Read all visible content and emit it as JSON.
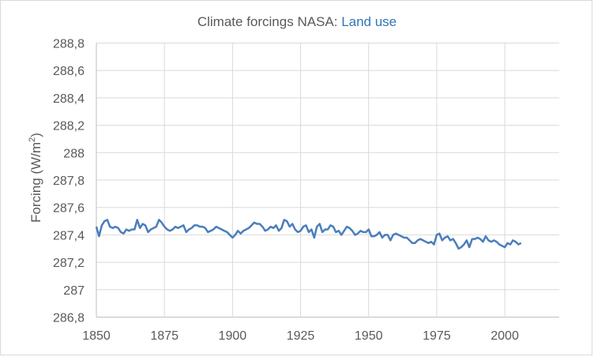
{
  "chart_data": {
    "type": "line",
    "title_prefix": "Climate forcings NASA: ",
    "title_highlight": "Land use",
    "xlabel": "",
    "ylabel": "Forcing (W/m",
    "ylabel_sup": "2",
    "ylabel_close": ")",
    "xlim": [
      1850,
      2020
    ],
    "ylim": [
      286.8,
      288.8
    ],
    "x_ticks": [
      1850,
      1875,
      1900,
      1925,
      1950,
      1975,
      2000
    ],
    "x_tick_labels": [
      "1850",
      "1875",
      "1900",
      "1925",
      "1950",
      "1975",
      "2000"
    ],
    "y_ticks": [
      286.8,
      287.0,
      287.2,
      287.4,
      287.6,
      287.8,
      288.0,
      288.2,
      288.4,
      288.6,
      288.8
    ],
    "y_tick_labels": [
      "286,8",
      "287",
      "287,2",
      "287,4",
      "287,6",
      "287,8",
      "288",
      "288,2",
      "288,4",
      "288,6",
      "288,8"
    ],
    "grid": true,
    "legend": "none",
    "series": [
      {
        "name": "Land use",
        "color": "#4a7ebb",
        "x_start": 1850,
        "x_step": 1,
        "values": [
          287.46,
          287.39,
          287.47,
          287.5,
          287.51,
          287.46,
          287.45,
          287.46,
          287.45,
          287.42,
          287.41,
          287.44,
          287.43,
          287.44,
          287.44,
          287.51,
          287.45,
          287.48,
          287.47,
          287.42,
          287.44,
          287.45,
          287.46,
          287.51,
          287.49,
          287.46,
          287.44,
          287.43,
          287.44,
          287.46,
          287.45,
          287.46,
          287.47,
          287.42,
          287.44,
          287.45,
          287.47,
          287.47,
          287.46,
          287.46,
          287.45,
          287.42,
          287.43,
          287.44,
          287.46,
          287.45,
          287.44,
          287.43,
          287.42,
          287.4,
          287.38,
          287.4,
          287.43,
          287.41,
          287.43,
          287.44,
          287.45,
          287.47,
          287.49,
          287.48,
          287.48,
          287.46,
          287.43,
          287.44,
          287.46,
          287.45,
          287.47,
          287.43,
          287.45,
          287.51,
          287.5,
          287.46,
          287.48,
          287.44,
          287.42,
          287.43,
          287.46,
          287.47,
          287.42,
          287.44,
          287.38,
          287.46,
          287.48,
          287.42,
          287.44,
          287.44,
          287.47,
          287.46,
          287.42,
          287.43,
          287.4,
          287.43,
          287.46,
          287.45,
          287.43,
          287.4,
          287.41,
          287.43,
          287.42,
          287.42,
          287.44,
          287.39,
          287.39,
          287.4,
          287.42,
          287.38,
          287.4,
          287.4,
          287.36,
          287.4,
          287.41,
          287.4,
          287.39,
          287.38,
          287.38,
          287.36,
          287.34,
          287.34,
          287.36,
          287.37,
          287.36,
          287.35,
          287.34,
          287.35,
          287.33,
          287.4,
          287.41,
          287.36,
          287.38,
          287.39,
          287.36,
          287.37,
          287.34,
          287.3,
          287.31,
          287.33,
          287.36,
          287.31,
          287.37,
          287.37,
          287.38,
          287.37,
          287.35,
          287.39,
          287.36,
          287.35,
          287.36,
          287.35,
          287.33,
          287.32,
          287.31,
          287.34,
          287.33,
          287.36,
          287.35,
          287.33,
          287.34
        ]
      }
    ]
  }
}
